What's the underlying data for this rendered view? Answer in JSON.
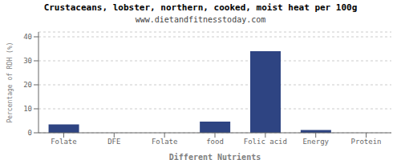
{
  "chart_data": {
    "type": "bar",
    "title": "Crustaceans, lobster, northern, cooked, moist heat per 100g",
    "subtitle": "www.dietandfitnesstoday.com",
    "categories": [
      "Folate",
      "DFE",
      "Folate",
      "food",
      "Folic acid",
      "Energy",
      "Protein"
    ],
    "values": [
      3.5,
      0.0,
      0.0,
      4.7,
      34.0,
      1.2,
      0.0
    ],
    "color": "#2e4482",
    "xlabel": "Different Nutrients",
    "ylabel": "Percentage of RDH (%)",
    "ylim": [
      0,
      42
    ],
    "yticks": [
      0,
      10,
      20,
      30,
      40
    ],
    "grid": true
  }
}
